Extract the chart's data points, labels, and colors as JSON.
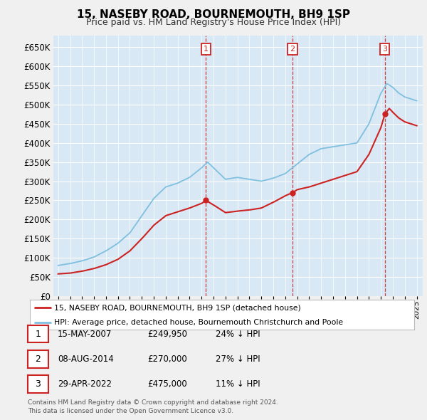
{
  "title": "15, NASEBY ROAD, BOURNEMOUTH, BH9 1SP",
  "subtitle": "Price paid vs. HM Land Registry's House Price Index (HPI)",
  "ytick_values": [
    0,
    50000,
    100000,
    150000,
    200000,
    250000,
    300000,
    350000,
    400000,
    450000,
    500000,
    550000,
    600000,
    650000
  ],
  "ylim": [
    0,
    680000
  ],
  "xlim_start": 1994.6,
  "xlim_end": 2025.5,
  "hpi_color": "#7fbfdf",
  "price_color": "#cc2222",
  "transactions": [
    {
      "num": 1,
      "date_str": "15-MAY-2007",
      "x": 2007.37,
      "price": 249950,
      "pct": "24%",
      "direction": "↓"
    },
    {
      "num": 2,
      "date_str": "08-AUG-2014",
      "x": 2014.6,
      "price": 270000,
      "pct": "27%",
      "direction": "↓"
    },
    {
      "num": 3,
      "date_str": "29-APR-2022",
      "x": 2022.33,
      "price": 475000,
      "pct": "11%",
      "direction": "↓"
    }
  ],
  "legend_red_label": "15, NASEBY ROAD, BOURNEMOUTH, BH9 1SP (detached house)",
  "legend_blue_label": "HPI: Average price, detached house, Bournemouth Christchurch and Poole",
  "footer_line1": "Contains HM Land Registry data © Crown copyright and database right 2024.",
  "footer_line2": "This data is licensed under the Open Government Licence v3.0.",
  "bg_color": "#f0f0f0",
  "plot_bg_color": "#d8e8f4"
}
